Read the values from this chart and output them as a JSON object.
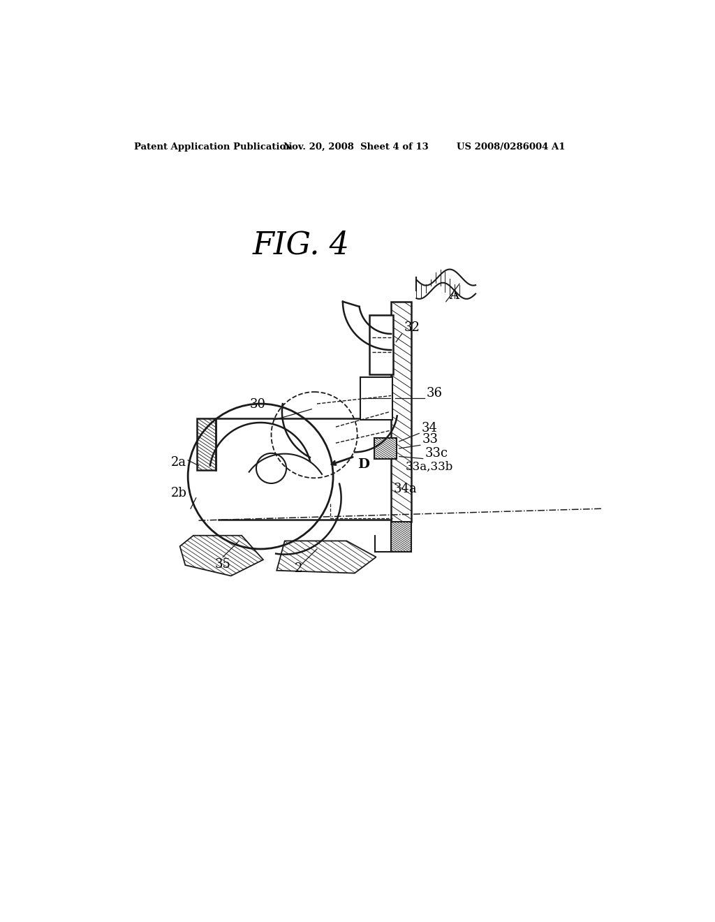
{
  "bg_color": "#ffffff",
  "line_color": "#1a1a1a",
  "header_left": "Patent Application Publication",
  "header_center": "Nov. 20, 2008  Sheet 4 of 13",
  "header_right": "US 2008/0286004 A1",
  "fig_title": "FIG. 4"
}
